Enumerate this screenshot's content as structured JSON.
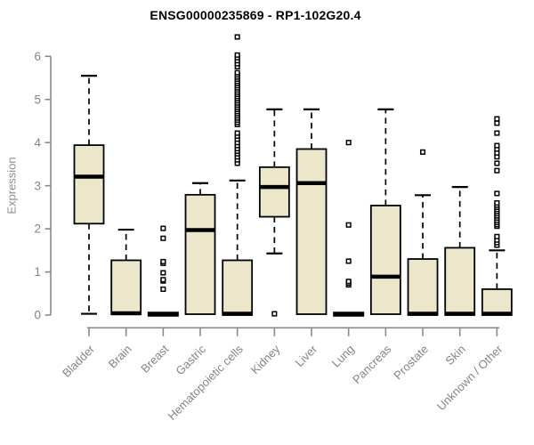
{
  "chart_data": {
    "type": "box",
    "title": "ENSG00000235869 - RP1-102G20.4",
    "xlabel": "",
    "ylabel": "Expression",
    "ylim": [
      0,
      6.6
    ],
    "yticks": [
      0,
      1,
      2,
      3,
      4,
      5,
      6
    ],
    "grid": false,
    "legend": "none",
    "box_fill": "#ece7cb",
    "box_stroke": "#000000",
    "axis_color": "#8a8a8a",
    "label_color": "#848484",
    "categories": [
      "Bladder",
      "Brain",
      "Breast",
      "Gastric",
      "Hematopoietic cells",
      "Kidney",
      "Liver",
      "Lung",
      "Pancreas",
      "Prostate",
      "Skin",
      "Unknown / Other"
    ],
    "series": [
      {
        "name": "Bladder",
        "low": 0.03,
        "q1": 2.12,
        "median": 3.21,
        "q3": 3.94,
        "high": 5.55,
        "outliers": []
      },
      {
        "name": "Brain",
        "low": 0.0,
        "q1": 0.02,
        "median": 0.04,
        "q3": 1.27,
        "high": 1.98,
        "outliers": []
      },
      {
        "name": "Breast",
        "low": 0.02,
        "q1": 0.02,
        "median": 0.02,
        "q3": 0.02,
        "high": 0.02,
        "outliers": [
          0.6,
          0.79,
          0.82,
          0.98,
          1.2,
          1.24,
          1.78,
          2.01
        ]
      },
      {
        "name": "Gastric",
        "low": 0.02,
        "q1": 0.02,
        "median": 1.97,
        "q3": 2.79,
        "high": 3.06,
        "outliers": []
      },
      {
        "name": "Hematopoietic cells",
        "low": 0.0,
        "q1": 0.0,
        "median": 0.03,
        "q3": 1.27,
        "high": 3.12,
        "outliers": [
          3.52,
          3.6,
          3.67,
          3.74,
          3.8,
          3.86,
          3.93,
          4.0,
          4.08,
          4.15,
          4.22,
          4.42,
          4.47,
          4.52,
          4.57,
          4.62,
          4.67,
          4.72,
          4.77,
          4.82,
          4.87,
          4.92,
          4.97,
          5.02,
          5.07,
          5.12,
          5.17,
          5.22,
          5.27,
          5.32,
          5.37,
          5.42,
          5.47,
          5.52,
          5.57,
          5.62,
          5.76,
          5.83,
          5.9,
          5.97,
          6.03,
          6.45
        ]
      },
      {
        "name": "Kidney",
        "low": 1.43,
        "q1": 2.28,
        "median": 2.97,
        "q3": 3.43,
        "high": 4.77,
        "outliers": [
          0.03
        ]
      },
      {
        "name": "Liver",
        "low": 0.0,
        "q1": 0.02,
        "median": 3.06,
        "q3": 3.85,
        "high": 4.77,
        "outliers": []
      },
      {
        "name": "Lung",
        "low": 0.02,
        "q1": 0.02,
        "median": 0.02,
        "q3": 0.02,
        "high": 0.02,
        "outliers": [
          0.7,
          0.74,
          0.78,
          1.25,
          2.09,
          4.0
        ]
      },
      {
        "name": "Pancreas",
        "low": 0.0,
        "q1": 0.02,
        "median": 0.89,
        "q3": 2.54,
        "high": 4.77,
        "outliers": []
      },
      {
        "name": "Prostate",
        "low": 0.0,
        "q1": 0.0,
        "median": 0.03,
        "q3": 1.3,
        "high": 2.78,
        "outliers": [
          3.78
        ]
      },
      {
        "name": "Skin",
        "low": 0.0,
        "q1": 0.0,
        "median": 0.03,
        "q3": 1.56,
        "high": 2.97,
        "outliers": []
      },
      {
        "name": "Unknown / Other",
        "low": 0.0,
        "q1": 0.0,
        "median": 0.03,
        "q3": 0.6,
        "high": 1.5,
        "outliers": [
          1.62,
          1.68,
          1.74,
          1.82,
          2.06,
          2.1,
          2.15,
          2.2,
          2.25,
          2.3,
          2.35,
          2.4,
          2.45,
          2.5,
          2.55,
          2.6,
          2.82,
          3.35,
          3.52,
          3.67,
          3.76,
          3.85,
          3.93,
          4.22,
          4.45,
          4.55
        ]
      }
    ]
  }
}
